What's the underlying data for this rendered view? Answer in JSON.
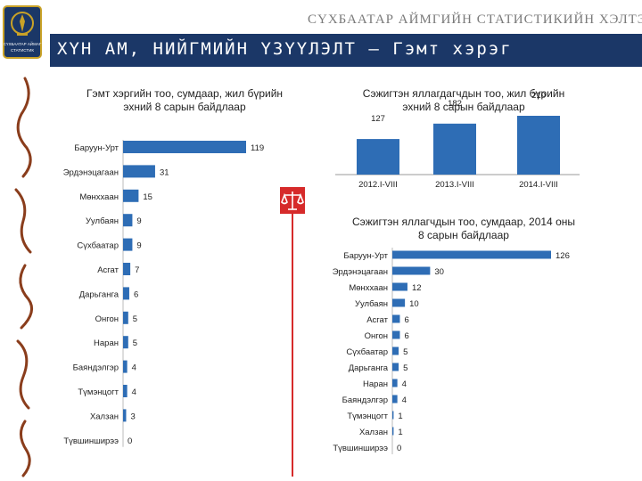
{
  "header": {
    "org_name": "СҮХБААТАР АЙМГИЙН СТАТИСТИКИЙН ХЭЛТЭС",
    "title": "ХҮН АМ, НИЙГМИЙН ҮЗҮҮЛЭЛТ – Гэмт хэрэг",
    "logo_text": "СҮХБААТАР АЙМАГ",
    "logo_caption": "СТАТИСТИК"
  },
  "icons": {
    "logo": "statistics-office-emblem",
    "ornament": "mongolian-script-ornament",
    "badge": "justice-scale-icon"
  },
  "colors": {
    "bar": "#2e6db5",
    "title_bar": "#1b3767",
    "accent": "#d62a2a"
  },
  "chart_data": [
    {
      "type": "bar",
      "orientation": "horizontal",
      "title": "Гэмт хэргийн тоо, сумдаар, жил бүрийн эхний 8 сарын байдлаар",
      "categories": [
        "Баруун-Урт",
        "Эрдэнэцагаан",
        "Мөнххаан",
        "Уулбаян",
        "Сүхбаатар",
        "Асгат",
        "Дарьганга",
        "Онгон",
        "Наран",
        "Баяндэлгэр",
        "Түмэнцогт",
        "Халзан",
        "Түвшинширээ"
      ],
      "values": [
        119,
        31,
        15,
        9,
        9,
        7,
        6,
        5,
        5,
        4,
        4,
        3,
        0
      ],
      "xlim": [
        0,
        119
      ]
    },
    {
      "type": "bar",
      "orientation": "vertical",
      "title": "Сэжигтэн яллагдагчдын тоо, жил бүрийн эхний 8 сарын байдлаар",
      "categories": [
        "2012.I-VIII",
        "2013.I-VIII",
        "2014.I-VIII"
      ],
      "values": [
        127,
        182,
        210
      ]
    },
    {
      "type": "bar",
      "orientation": "horizontal",
      "title": "Сэжигтэн яллагчдын тоо, сумдаар, 2014 оны 8 сарын байдлаар",
      "categories": [
        "Баруун-Урт",
        "Эрдэнэцагаан",
        "Мөнххаан",
        "Уулбаян",
        "Асгат",
        "Онгон",
        "Сүхбаатар",
        "Дарьганга",
        "Наран",
        "Баяндэлгэр",
        "Түмэнцогт",
        "Халзан",
        "Түвшинширээ"
      ],
      "values": [
        126,
        30,
        12,
        10,
        6,
        6,
        5,
        5,
        4,
        4,
        1,
        1,
        0
      ],
      "xlim": [
        0,
        126
      ]
    }
  ]
}
